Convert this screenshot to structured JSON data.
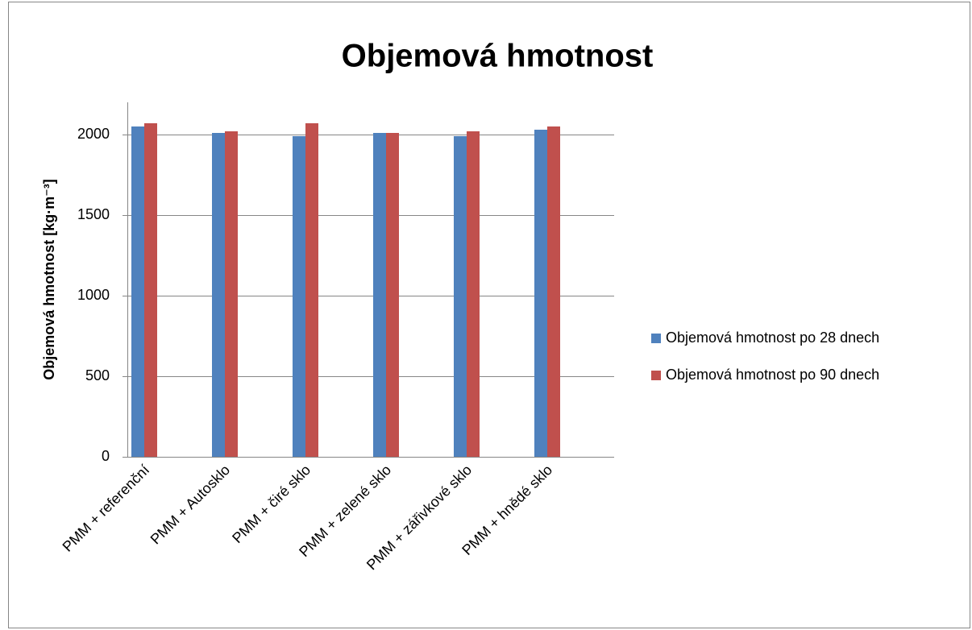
{
  "chart_data": {
    "type": "bar",
    "title": "Objemová hmotnost",
    "y_label": "Objemová hmotnost [kg·m⁻³]",
    "categories": [
      "PMM + referenční",
      "PMM + Autosklo",
      "PMM + čiré sklo",
      "PMM + zelené sklo",
      "PMM + zářivkové sklo",
      "PMM + hnědé sklo"
    ],
    "series": [
      {
        "name": "Objemová hmotnost po 28 dnech",
        "color": "#4f81bd",
        "values": [
          2050,
          2010,
          1990,
          2010,
          1990,
          2030
        ]
      },
      {
        "name": "Objemová hmotnost po 90 dnech",
        "color": "#c0504d",
        "values": [
          2070,
          2020,
          2070,
          2010,
          2020,
          2050
        ]
      }
    ],
    "ylim": [
      0,
      2200
    ],
    "yticks": [
      0,
      500,
      1000,
      1500,
      2000
    ],
    "grid": true,
    "legend": "right"
  }
}
